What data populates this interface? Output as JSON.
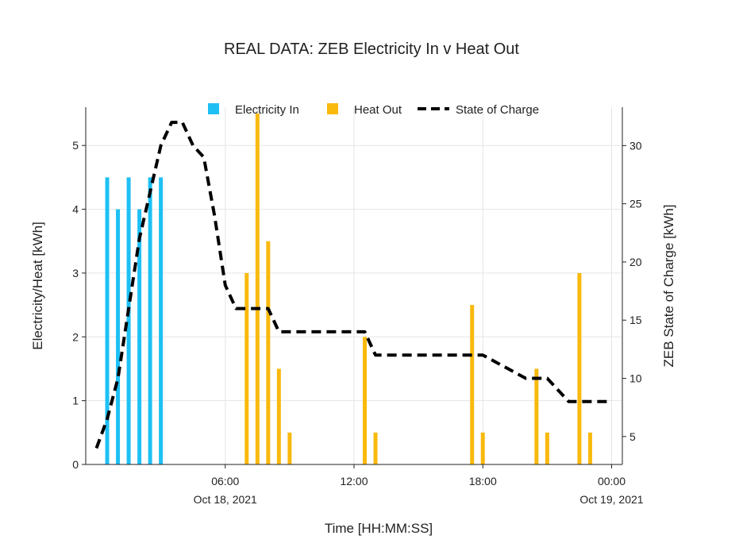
{
  "chart_data": {
    "type": "bar",
    "title": "REAL DATA: ZEB Electricity In v Heat Out",
    "xlabel": "Time [HH:MM:SS]",
    "ylabel": "Electricity/Heat [kWh]",
    "y2label": "ZEB State of Charge [kWh]",
    "xlim_hours": [
      -0.5,
      24.5
    ],
    "ylim": [
      0,
      5.6
    ],
    "y2lim": [
      2.6,
      33.3
    ],
    "x_ticks": [
      {
        "hour": 6,
        "label": "06:00",
        "sublabel": "Oct 18, 2021"
      },
      {
        "hour": 12,
        "label": "12:00",
        "sublabel": ""
      },
      {
        "hour": 18,
        "label": "18:00",
        "sublabel": ""
      },
      {
        "hour": 24,
        "label": "00:00",
        "sublabel": "Oct 19, 2021"
      }
    ],
    "y_ticks": [
      0,
      1,
      2,
      3,
      4,
      5
    ],
    "y2_ticks": [
      5,
      10,
      15,
      20,
      25,
      30
    ],
    "legend": {
      "placement": "top",
      "items": [
        {
          "label": "Electricity In",
          "kind": "bar",
          "color": "#1ec0f4"
        },
        {
          "label": "Heat Out",
          "kind": "bar",
          "color": "#f9b90d"
        },
        {
          "label": "State of Charge",
          "kind": "dash",
          "color": "#000000"
        }
      ]
    },
    "grid": true,
    "series": [
      {
        "name": "Electricity In",
        "type": "bar",
        "axis": "left",
        "color": "#1ec0f4",
        "x": [
          "00:30",
          "01:00",
          "01:30",
          "02:00",
          "02:30",
          "03:00"
        ],
        "values": [
          4.5,
          4.0,
          4.5,
          4.0,
          4.5,
          4.5
        ]
      },
      {
        "name": "Heat Out",
        "type": "bar",
        "axis": "left",
        "color": "#f9b90d",
        "x": [
          "07:00",
          "07:30",
          "08:00",
          "08:30",
          "09:00",
          "12:30",
          "13:00",
          "17:30",
          "18:00",
          "20:30",
          "21:00",
          "22:30",
          "23:00"
        ],
        "values": [
          3.0,
          5.5,
          3.5,
          1.5,
          0.5,
          2.0,
          0.5,
          2.5,
          0.5,
          1.5,
          0.5,
          3.0,
          0.5
        ]
      },
      {
        "name": "State of Charge",
        "type": "line",
        "axis": "right",
        "color": "#000000",
        "dash": true,
        "x": [
          "00:00",
          "00:30",
          "01:00",
          "01:30",
          "02:00",
          "02:30",
          "03:00",
          "03:30",
          "04:00",
          "04:30",
          "05:00",
          "05:30",
          "06:00",
          "06:30",
          "07:00",
          "07:30",
          "08:00",
          "08:30",
          "09:00",
          "12:00",
          "12:30",
          "13:00",
          "17:00",
          "17:30",
          "18:00",
          "20:00",
          "20:30",
          "21:00",
          "22:00",
          "22:30",
          "23:00",
          "24:00"
        ],
        "values": [
          4,
          6.5,
          10,
          16,
          22,
          26,
          30,
          32,
          32,
          30,
          29,
          24,
          18,
          16,
          16,
          16,
          16,
          14,
          14,
          14,
          14,
          12,
          12,
          12,
          12,
          10,
          10,
          10,
          8,
          8,
          8,
          8
        ]
      }
    ]
  }
}
